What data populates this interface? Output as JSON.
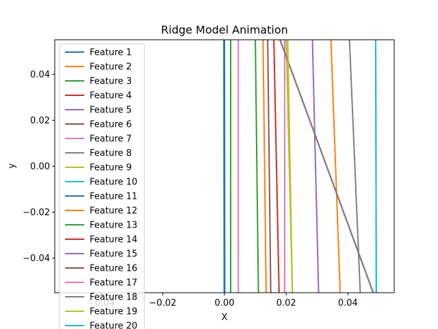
{
  "chart_data": {
    "type": "line",
    "title": "Ridge Model Animation",
    "xlabel": "X",
    "ylabel": "y",
    "xlim": [
      -0.055,
      0.055
    ],
    "ylim": [
      -0.055,
      0.055
    ],
    "x_ticks": [
      -0.04,
      -0.02,
      0.0,
      0.02,
      0.04
    ],
    "x_tick_labels": [
      "−0.04",
      "−0.02",
      "0.00",
      "0.02",
      "0.04"
    ],
    "y_ticks": [
      -0.04,
      -0.02,
      0.0,
      0.02,
      0.04
    ],
    "y_tick_labels": [
      "−0.04",
      "−0.02",
      "0.00",
      "0.02",
      "0.04"
    ],
    "legend_position": "upper-left",
    "series": [
      {
        "name": "Feature 1",
        "color": "#1f77b4",
        "points": [
          [
            -0.0002,
            0.055
          ],
          [
            -0.0001,
            -0.055
          ]
        ]
      },
      {
        "name": "Feature 2",
        "color": "#ff7f0e",
        "points": [
          [
            0.0125,
            0.055
          ],
          [
            0.0135,
            -0.055
          ]
        ]
      },
      {
        "name": "Feature 3",
        "color": "#2ca02c",
        "points": [
          [
            0.01,
            0.055
          ],
          [
            0.011,
            -0.055
          ]
        ]
      },
      {
        "name": "Feature 4",
        "color": "#d62728",
        "points": [
          [
            0.016,
            0.055
          ],
          [
            0.0177,
            -0.055
          ]
        ]
      },
      {
        "name": "Feature 5",
        "color": "#9467bd",
        "points": [
          [
            0.0285,
            0.055
          ],
          [
            0.0305,
            -0.055
          ]
        ]
      },
      {
        "name": "Feature 6",
        "color": "#8c564b",
        "points": [
          [
            0.014,
            0.055
          ],
          [
            0.015,
            -0.055
          ]
        ]
      },
      {
        "name": "Feature 7",
        "color": "#e377c2",
        "points": [
          [
            0.0045,
            0.055
          ],
          [
            0.0045,
            -0.055
          ]
        ]
      },
      {
        "name": "Feature 8",
        "color": "#7f7f7f",
        "points": [
          [
            0.0405,
            0.055
          ],
          [
            0.044,
            -0.055
          ]
        ]
      },
      {
        "name": "Feature 9",
        "color": "#bcbd22",
        "points": [
          [
            0.02,
            0.055
          ],
          [
            0.022,
            -0.055
          ]
        ]
      },
      {
        "name": "Feature 10",
        "color": "#17becf",
        "points": [
          [
            0.049,
            0.055
          ],
          [
            0.0492,
            -0.055
          ]
        ]
      },
      {
        "name": "Feature 11",
        "color": "#1f77b4",
        "points": [
          [
            0.0,
            0.055
          ],
          [
            0.0001,
            -0.055
          ]
        ]
      },
      {
        "name": "Feature 12",
        "color": "#ff7f0e",
        "points": [
          [
            0.0345,
            0.055
          ],
          [
            0.0375,
            -0.055
          ]
        ]
      },
      {
        "name": "Feature 13",
        "color": "#2ca02c",
        "points": [
          [
            0.002,
            0.055
          ],
          [
            0.002,
            -0.055
          ]
        ]
      },
      {
        "name": "Feature 14",
        "color": "#d62728",
        "points": [
          [
            0.018,
            0.055
          ],
          [
            0.0482,
            -0.055
          ]
        ]
      },
      {
        "name": "Feature 15",
        "color": "#9467bd",
        "points": [
          [
            0.018,
            0.055
          ],
          [
            0.0482,
            -0.055
          ]
        ]
      },
      {
        "name": "Feature 16",
        "color": "#8c564b",
        "points": [
          [
            0.018,
            0.055
          ],
          [
            0.0482,
            -0.055
          ]
        ]
      },
      {
        "name": "Feature 17",
        "color": "#e377c2",
        "points": [
          [
            0.0195,
            0.055
          ],
          [
            0.0195,
            -0.055
          ]
        ]
      },
      {
        "name": "Feature 18",
        "color": "#7f7f7f",
        "points": [
          [
            0.018,
            0.055
          ],
          [
            0.0482,
            -0.055
          ]
        ]
      },
      {
        "name": "Feature 19",
        "color": "#bcbd22",
        "points": [
          [
            0.0205,
            0.055
          ],
          [
            0.022,
            -0.055
          ]
        ]
      },
      {
        "name": "Feature 20",
        "color": "#17becf",
        "points": [
          [
            0.049,
            0.055
          ],
          [
            0.0492,
            -0.055
          ]
        ]
      }
    ]
  }
}
